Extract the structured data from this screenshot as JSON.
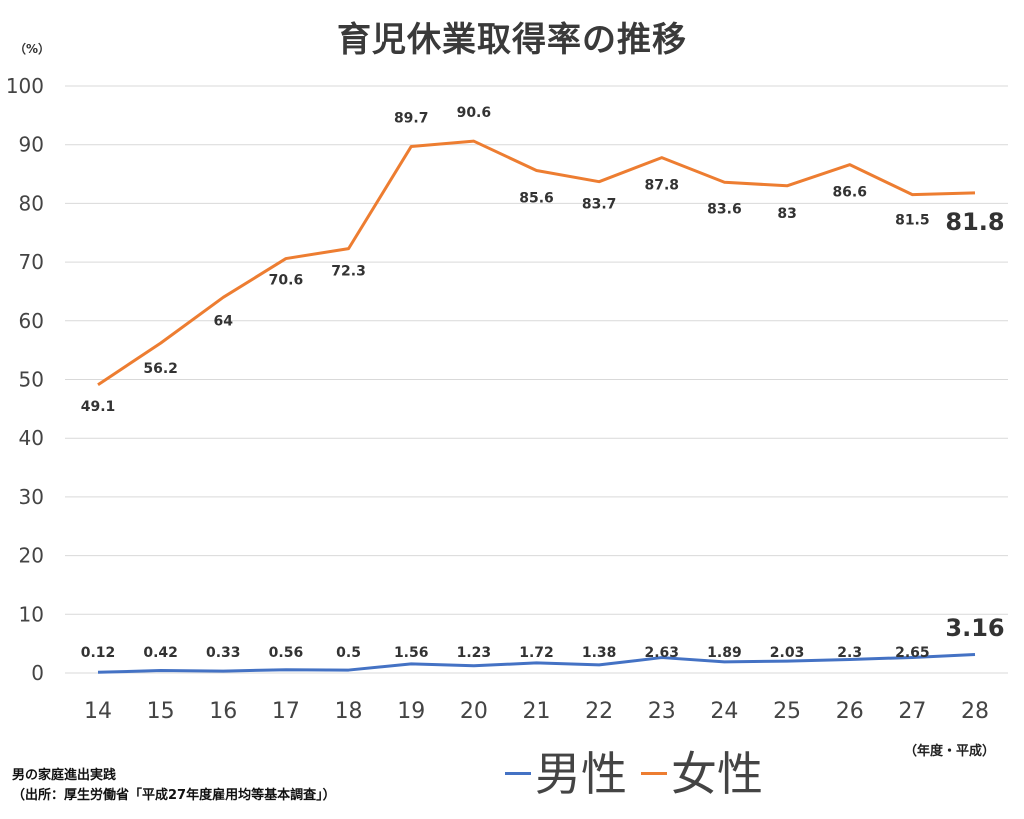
{
  "title": "育児休業取得率の推移",
  "y_unit_label": "（%）",
  "x_unit_label": "（年度・平成）",
  "source": {
    "line1": "男の家庭進出実践",
    "line2": "（出所：厚生労働省「平成27年度雇用均等基本調査」）"
  },
  "colors": {
    "male": "#4472c4",
    "female": "#ed7d31",
    "grid": "#d9d9d9",
    "text": "#333333"
  },
  "chart_data": {
    "type": "line",
    "title": "育児休業取得率の推移",
    "ylabel": "（%）",
    "xlabel": "（年度・平成）",
    "ylim": [
      0,
      100
    ],
    "yticks": [
      0,
      10,
      20,
      30,
      40,
      50,
      60,
      70,
      80,
      90,
      100
    ],
    "grid": true,
    "legend_position": "bottom",
    "x": [
      "14",
      "15",
      "16",
      "17",
      "18",
      "19",
      "20",
      "21",
      "22",
      "23",
      "24",
      "25",
      "26",
      "27",
      "28"
    ],
    "series": [
      {
        "name": "男性",
        "color": "#4472c4",
        "values": [
          0.12,
          0.42,
          0.33,
          0.56,
          0.5,
          1.56,
          1.23,
          1.72,
          1.38,
          2.63,
          1.89,
          2.03,
          2.3,
          2.65,
          3.16
        ],
        "labels": [
          "0.12",
          "0.42",
          "0.33",
          "0.56",
          "0.5",
          "1.56",
          "1.23",
          "1.72",
          "1.38",
          "2.63",
          "1.89",
          "2.03",
          "2.3",
          "2.65",
          "3.16"
        ]
      },
      {
        "name": "女性",
        "color": "#ed7d31",
        "values": [
          49.1,
          56.2,
          64,
          70.6,
          72.3,
          89.7,
          90.6,
          85.6,
          83.7,
          87.8,
          83.6,
          83,
          86.6,
          81.5,
          81.8
        ],
        "labels": [
          "49.1",
          "56.2",
          "64",
          "70.6",
          "72.3",
          "89.7",
          "90.6",
          "85.6",
          "83.7",
          "87.8",
          "83.6",
          "83",
          "86.6",
          "81.5",
          "81.8"
        ]
      }
    ]
  }
}
